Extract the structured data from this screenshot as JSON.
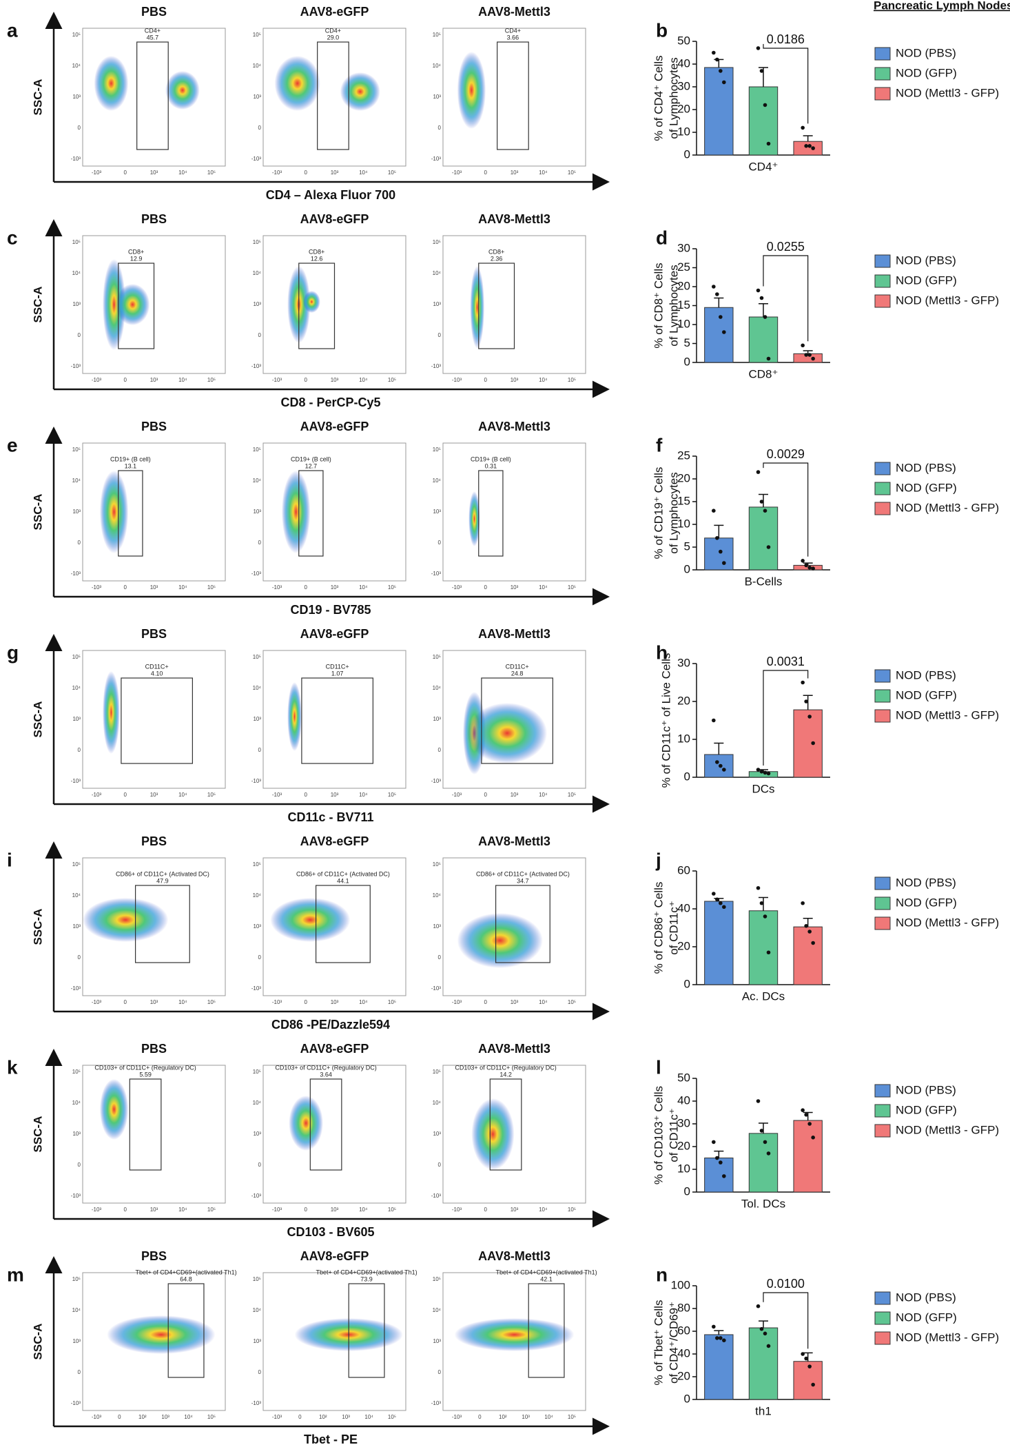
{
  "heading": "Pancreatic Lymph Nodes",
  "groups": [
    {
      "name": "PBS",
      "color": "#2a7fd0"
    },
    {
      "name": "AAV8-eGFP",
      "color": "#2bb24c"
    },
    {
      "name": "AAV8-Mettl3",
      "color": "#e03232"
    }
  ],
  "flow_y_label": "SSC-A",
  "flow_yticks": [
    "10⁵",
    "10⁴",
    "10³",
    "0",
    "-10³"
  ],
  "flow_rows": [
    {
      "letter": "a",
      "xlabel": "CD4 – Alexa Fluor 700",
      "xticks": [
        "-10³",
        "0",
        "10³",
        "10⁴",
        "10⁵"
      ],
      "gates": [
        {
          "label": "CD4+",
          "value": "45.7"
        },
        {
          "label": "CD4+",
          "value": "29.0"
        },
        {
          "label": "CD4+",
          "value": "3.66"
        }
      ]
    },
    {
      "letter": "c",
      "xlabel": "CD8 - PerCP-Cy5",
      "xticks": [
        "-10³",
        "0",
        "10³",
        "10⁴",
        "10⁵"
      ],
      "gates": [
        {
          "label": "CD8+",
          "value": "12.9"
        },
        {
          "label": "CD8+",
          "value": "12.6"
        },
        {
          "label": "CD8+",
          "value": "2.36"
        }
      ]
    },
    {
      "letter": "e",
      "xlabel": "CD19 - BV785",
      "xticks": [
        "-10³",
        "0",
        "10³",
        "10⁴",
        "10⁵"
      ],
      "gates": [
        {
          "label": "CD19+ (B cell)",
          "value": "13.1"
        },
        {
          "label": "CD19+ (B cell)",
          "value": "12.7"
        },
        {
          "label": "CD19+ (B cell)",
          "value": "0.31"
        }
      ]
    },
    {
      "letter": "g",
      "xlabel": "CD11c - BV711",
      "xticks": [
        "-10³",
        "0",
        "10³",
        "10⁴",
        "10⁵"
      ],
      "gates": [
        {
          "label": "CD11C+",
          "value": "4.10"
        },
        {
          "label": "CD11C+",
          "value": "1.07"
        },
        {
          "label": "CD11C+",
          "value": "24.8"
        }
      ]
    },
    {
      "letter": "i",
      "xlabel": "CD86 -PE/Dazzle594",
      "xticks": [
        "-10³",
        "0",
        "10³",
        "10⁴",
        "10⁵"
      ],
      "gates": [
        {
          "label": "CD86+ of CD11C+ (Activated DC)",
          "value": "47.9"
        },
        {
          "label": "CD86+ of CD11C+ (Activated DC)",
          "value": "44.1"
        },
        {
          "label": "CD86+ of CD11C+ (Activated DC)",
          "value": "34.7"
        }
      ]
    },
    {
      "letter": "k",
      "xlabel": "CD103 - BV605",
      "xticks": [
        "-10³",
        "0",
        "10³",
        "10⁴",
        "10⁵"
      ],
      "gates": [
        {
          "label": "CD103+ of CD11C+ (Regulatory DC)",
          "value": "5.59"
        },
        {
          "label": "CD103+ of CD11C+ (Regulatory DC)",
          "value": "3.64"
        },
        {
          "label": "CD103+ of CD11C+ (Regulatory DC)",
          "value": "14.2"
        }
      ]
    },
    {
      "letter": "m",
      "xlabel": "Tbet - PE",
      "xticks": [
        "-10³",
        "0",
        "10²",
        "10³",
        "10⁴",
        "10⁵"
      ],
      "gates": [
        {
          "label": "Tbet+ of CD4+CD69+(activated Th1)",
          "value": "64.8"
        },
        {
          "label": "Tbet+ of CD4+CD69+(activated Th1)",
          "value": "73.9"
        },
        {
          "label": "Tbet+ of CD4+CD69+(activated Th1)",
          "value": "42.1"
        }
      ]
    }
  ],
  "chart_data": [
    {
      "type": "bar",
      "letter": "b",
      "ylabel": [
        "% of CD4⁺ Cells",
        "of Lymphocytes"
      ],
      "categories": [
        "CD4⁺"
      ],
      "ylim": [
        0,
        50
      ],
      "yticks": [
        0,
        10,
        20,
        30,
        40,
        50
      ],
      "p_value": "0.0186",
      "series": [
        {
          "name": "NOD (PBS)",
          "color": "#5b8fd6",
          "values": [
            38.5
          ],
          "errors": [
            3.5
          ],
          "points": [
            [
              45,
              42,
              37,
              32
            ]
          ]
        },
        {
          "name": "NOD (GFP)",
          "color": "#5fc592",
          "values": [
            30
          ],
          "errors": [
            8.5
          ],
          "points": [
            [
              47,
              37,
              22,
              5
            ]
          ]
        },
        {
          "name": "NOD (Mettl3 - GFP)",
          "color": "#f07878",
          "values": [
            6
          ],
          "errors": [
            2.5
          ],
          "points": [
            [
              12,
              4,
              4,
              3
            ]
          ]
        }
      ]
    },
    {
      "type": "bar",
      "letter": "d",
      "ylabel": [
        "% of CD8⁺ Cells",
        "of Lymphocytes"
      ],
      "categories": [
        "CD8⁺"
      ],
      "ylim": [
        0,
        30
      ],
      "yticks": [
        0,
        5,
        10,
        15,
        20,
        25,
        30
      ],
      "p_value": "0.0255",
      "series": [
        {
          "name": "NOD (PBS)",
          "color": "#5b8fd6",
          "values": [
            14.5
          ],
          "errors": [
            2.5
          ],
          "points": [
            [
              20,
              18,
              12,
              8
            ]
          ]
        },
        {
          "name": "NOD (GFP)",
          "color": "#5fc592",
          "values": [
            12
          ],
          "errors": [
            3.5
          ],
          "points": [
            [
              19,
              17,
              12,
              1
            ]
          ]
        },
        {
          "name": "NOD (Mettl3 - GFP)",
          "color": "#f07878",
          "values": [
            2.3
          ],
          "errors": [
            0.8
          ],
          "points": [
            [
              4.5,
              2,
              2,
              1
            ]
          ]
        }
      ]
    },
    {
      "type": "bar",
      "letter": "f",
      "ylabel": [
        "% of CD19⁺ Cells",
        "of Lymphocytes"
      ],
      "categories": [
        "B-Cells"
      ],
      "ylim": [
        0,
        25
      ],
      "yticks": [
        0,
        5,
        10,
        15,
        20,
        25
      ],
      "p_value": "0.0029",
      "series": [
        {
          "name": "NOD (PBS)",
          "color": "#5b8fd6",
          "values": [
            7
          ],
          "errors": [
            2.8
          ],
          "points": [
            [
              13,
              7,
              4,
              1.5
            ]
          ]
        },
        {
          "name": "NOD (GFP)",
          "color": "#5fc592",
          "values": [
            13.8
          ],
          "errors": [
            2.8
          ],
          "points": [
            [
              21.5,
              15,
              13,
              5
            ]
          ]
        },
        {
          "name": "NOD (Mettl3 - GFP)",
          "color": "#f07878",
          "values": [
            1
          ],
          "errors": [
            0.5
          ],
          "points": [
            [
              2,
              1,
              0.5,
              0.3
            ]
          ]
        }
      ]
    },
    {
      "type": "bar",
      "letter": "h",
      "ylabel": [
        "% of CD11c⁺ of Live Cells"
      ],
      "categories": [
        "DCs"
      ],
      "ylim": [
        0,
        30
      ],
      "yticks": [
        0,
        10,
        20,
        30
      ],
      "p_value": "0.0031",
      "series": [
        {
          "name": "NOD (PBS)",
          "color": "#5b8fd6",
          "values": [
            6
          ],
          "errors": [
            3
          ],
          "points": [
            [
              15,
              4,
              3,
              2
            ]
          ]
        },
        {
          "name": "NOD (GFP)",
          "color": "#5fc592",
          "values": [
            1.5
          ],
          "errors": [
            0.5
          ],
          "points": [
            [
              2,
              1.5,
              1.2,
              1
            ]
          ]
        },
        {
          "name": "NOD (Mettl3 - GFP)",
          "color": "#f07878",
          "values": [
            17.8
          ],
          "errors": [
            3.8
          ],
          "points": [
            [
              25,
              20,
              16,
              9
            ]
          ]
        }
      ]
    },
    {
      "type": "bar",
      "letter": "j",
      "ylabel": [
        "% of CD86⁺ Cells",
        "of CD11c⁺"
      ],
      "categories": [
        "Ac. DCs"
      ],
      "ylim": [
        0,
        60
      ],
      "yticks": [
        0,
        20,
        40,
        60
      ],
      "series": [
        {
          "name": "NOD (PBS)",
          "color": "#5b8fd6",
          "values": [
            44
          ],
          "errors": [
            1.5
          ],
          "points": [
            [
              48,
              45,
              43,
              41
            ]
          ]
        },
        {
          "name": "NOD (GFP)",
          "color": "#5fc592",
          "values": [
            39
          ],
          "errors": [
            7
          ],
          "points": [
            [
              51,
              43,
              36,
              17
            ]
          ]
        },
        {
          "name": "NOD (Mettl3 - GFP)",
          "color": "#f07878",
          "values": [
            30.5
          ],
          "errors": [
            4.5
          ],
          "points": [
            [
              43,
              31,
              28,
              22
            ]
          ]
        }
      ]
    },
    {
      "type": "bar",
      "letter": "l",
      "ylabel": [
        "% of CD103⁺ Cells",
        "of CD11c⁺"
      ],
      "categories": [
        "Tol. DCs"
      ],
      "ylim": [
        0,
        50
      ],
      "yticks": [
        0,
        10,
        20,
        30,
        40,
        50
      ],
      "series": [
        {
          "name": "NOD (PBS)",
          "color": "#5b8fd6",
          "values": [
            15
          ],
          "errors": [
            3
          ],
          "points": [
            [
              22,
              15,
              13,
              7
            ]
          ]
        },
        {
          "name": "NOD (GFP)",
          "color": "#5fc592",
          "values": [
            25.8
          ],
          "errors": [
            4.5
          ],
          "points": [
            [
              40,
              27,
              22,
              17
            ]
          ]
        },
        {
          "name": "NOD (Mettl3 - GFP)",
          "color": "#f07878",
          "values": [
            31.5
          ],
          "errors": [
            3.5
          ],
          "points": [
            [
              36,
              34,
              30,
              24
            ]
          ]
        }
      ]
    },
    {
      "type": "bar",
      "letter": "n",
      "ylabel": [
        "% of Tbet⁺ Cells",
        "of CD4⁺/CD69⁺"
      ],
      "categories": [
        "th1"
      ],
      "ylim": [
        0,
        100
      ],
      "yticks": [
        0,
        20,
        40,
        60,
        80,
        100
      ],
      "p_value": "0.0100",
      "series": [
        {
          "name": "NOD (PBS)",
          "color": "#5b8fd6",
          "values": [
            57
          ],
          "errors": [
            3.5
          ],
          "points": [
            [
              64,
              54,
              54,
              52
            ]
          ]
        },
        {
          "name": "NOD (GFP)",
          "color": "#5fc592",
          "values": [
            63
          ],
          "errors": [
            6
          ],
          "points": [
            [
              82,
              62,
              58,
              47
            ]
          ]
        },
        {
          "name": "NOD (Mettl3 - GFP)",
          "color": "#f07878",
          "values": [
            33.5
          ],
          "errors": [
            7.5
          ],
          "points": [
            [
              40,
              36,
              29,
              13
            ]
          ]
        }
      ]
    }
  ]
}
